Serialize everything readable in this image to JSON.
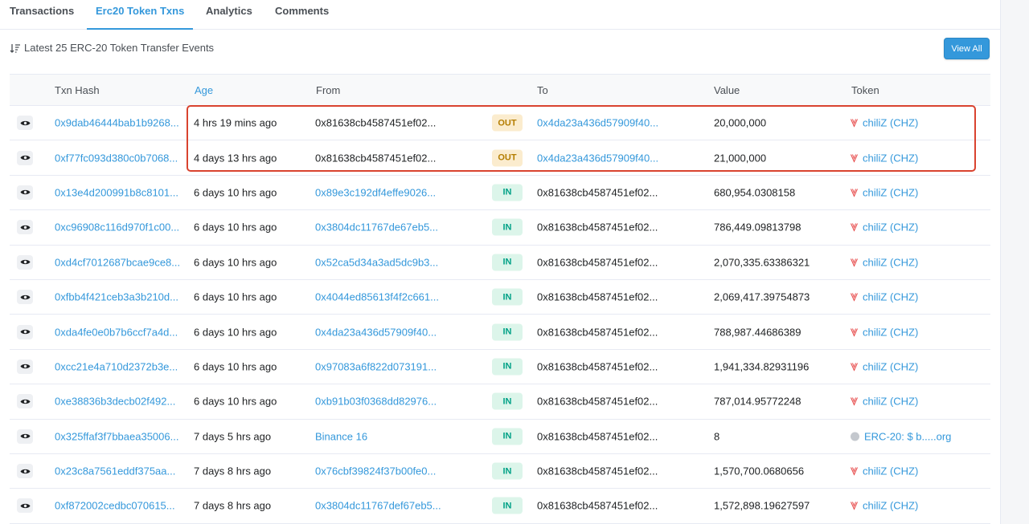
{
  "tabs": [
    {
      "label": "Transactions",
      "active": false
    },
    {
      "label": "Erc20 Token Txns",
      "active": true
    },
    {
      "label": "Analytics",
      "active": false
    },
    {
      "label": "Comments",
      "active": false
    }
  ],
  "summary": {
    "icon": "sort-descending-icon",
    "text": "Latest 25 ERC-20 Token Transfer Events"
  },
  "view_all_label": "View All",
  "columns": [
    "Txn Hash",
    "Age",
    "From",
    "To",
    "Value",
    "Token"
  ],
  "colors": {
    "accent": "#3498db",
    "out_bg": "#fbecce",
    "out_text": "#b47d00",
    "in_bg": "#dcf5ea",
    "in_text": "#00a186",
    "highlight": "#d9432f"
  },
  "rows": [
    {
      "hash": "0x9dab46444bab1b9268...",
      "age": "4 hrs 19 mins ago",
      "from": "0x81638cb4587451ef02...",
      "from_link": false,
      "dir": "OUT",
      "to": "0x4da23a436d57909f40...",
      "to_link": true,
      "value": "20,000,000",
      "token": "chiliZ (CHZ)",
      "token_icon": "chiliz-icon"
    },
    {
      "hash": "0xf77fc093d380c0b7068...",
      "age": "4 days 13 hrs ago",
      "from": "0x81638cb4587451ef02...",
      "from_link": false,
      "dir": "OUT",
      "to": "0x4da23a436d57909f40...",
      "to_link": true,
      "value": "21,000,000",
      "token": "chiliZ (CHZ)",
      "token_icon": "chiliz-icon"
    },
    {
      "hash": "0x13e4d200991b8c8101...",
      "age": "6 days 10 hrs ago",
      "from": "0x89e3c192df4effe9026...",
      "from_link": true,
      "dir": "IN",
      "to": "0x81638cb4587451ef02...",
      "to_link": false,
      "value": "680,954.0308158",
      "token": "chiliZ (CHZ)",
      "token_icon": "chiliz-icon"
    },
    {
      "hash": "0xc96908c116d970f1c00...",
      "age": "6 days 10 hrs ago",
      "from": "0x3804dc11767de67eb5...",
      "from_link": true,
      "dir": "IN",
      "to": "0x81638cb4587451ef02...",
      "to_link": false,
      "value": "786,449.09813798",
      "token": "chiliZ (CHZ)",
      "token_icon": "chiliz-icon"
    },
    {
      "hash": "0xd4cf7012687bcae9ce8...",
      "age": "6 days 10 hrs ago",
      "from": "0x52ca5d34a3ad5dc9b3...",
      "from_link": true,
      "dir": "IN",
      "to": "0x81638cb4587451ef02...",
      "to_link": false,
      "value": "2,070,335.63386321",
      "token": "chiliZ (CHZ)",
      "token_icon": "chiliz-icon"
    },
    {
      "hash": "0xfbb4f421ceb3a3b210d...",
      "age": "6 days 10 hrs ago",
      "from": "0x4044ed85613f4f2c661...",
      "from_link": true,
      "dir": "IN",
      "to": "0x81638cb4587451ef02...",
      "to_link": false,
      "value": "2,069,417.39754873",
      "token": "chiliZ (CHZ)",
      "token_icon": "chiliz-icon"
    },
    {
      "hash": "0xda4fe0e0b7b6ccf7a4d...",
      "age": "6 days 10 hrs ago",
      "from": "0x4da23a436d57909f40...",
      "from_link": true,
      "dir": "IN",
      "to": "0x81638cb4587451ef02...",
      "to_link": false,
      "value": "788,987.44686389",
      "token": "chiliZ (CHZ)",
      "token_icon": "chiliz-icon"
    },
    {
      "hash": "0xcc21e4a710d2372b3e...",
      "age": "6 days 10 hrs ago",
      "from": "0x97083a6f822d073191...",
      "from_link": true,
      "dir": "IN",
      "to": "0x81638cb4587451ef02...",
      "to_link": false,
      "value": "1,941,334.82931196",
      "token": "chiliZ (CHZ)",
      "token_icon": "chiliz-icon"
    },
    {
      "hash": "0xe38836b3decb02f492...",
      "age": "6 days 10 hrs ago",
      "from": "0xb91b03f0368dd82976...",
      "from_link": true,
      "dir": "IN",
      "to": "0x81638cb4587451ef02...",
      "to_link": false,
      "value": "787,014.95772248",
      "token": "chiliZ (CHZ)",
      "token_icon": "chiliz-icon"
    },
    {
      "hash": "0x325ffaf3f7bbaea35006...",
      "age": "7 days 5 hrs ago",
      "from": "Binance 16",
      "from_link": true,
      "dir": "IN",
      "to": "0x81638cb4587451ef02...",
      "to_link": false,
      "value": "8",
      "token": "ERC-20: $ b.....org",
      "token_icon": "erc20-token-icon"
    },
    {
      "hash": "0x23c8a7561eddf375aa...",
      "age": "7 days 8 hrs ago",
      "from": "0x76cbf39824f37b00fe0...",
      "from_link": true,
      "dir": "IN",
      "to": "0x81638cb4587451ef02...",
      "to_link": false,
      "value": "1,570,700.0680656",
      "token": "chiliZ (CHZ)",
      "token_icon": "chiliz-icon"
    },
    {
      "hash": "0xf872002cedbc070615...",
      "age": "7 days 8 hrs ago",
      "from": "0x3804dc11767def67eb5...",
      "from_link": true,
      "dir": "IN",
      "to": "0x81638cb4587451ef02...",
      "to_link": false,
      "value": "1,572,898.19627597",
      "token": "chiliZ (CHZ)",
      "token_icon": "chiliz-icon"
    }
  ]
}
